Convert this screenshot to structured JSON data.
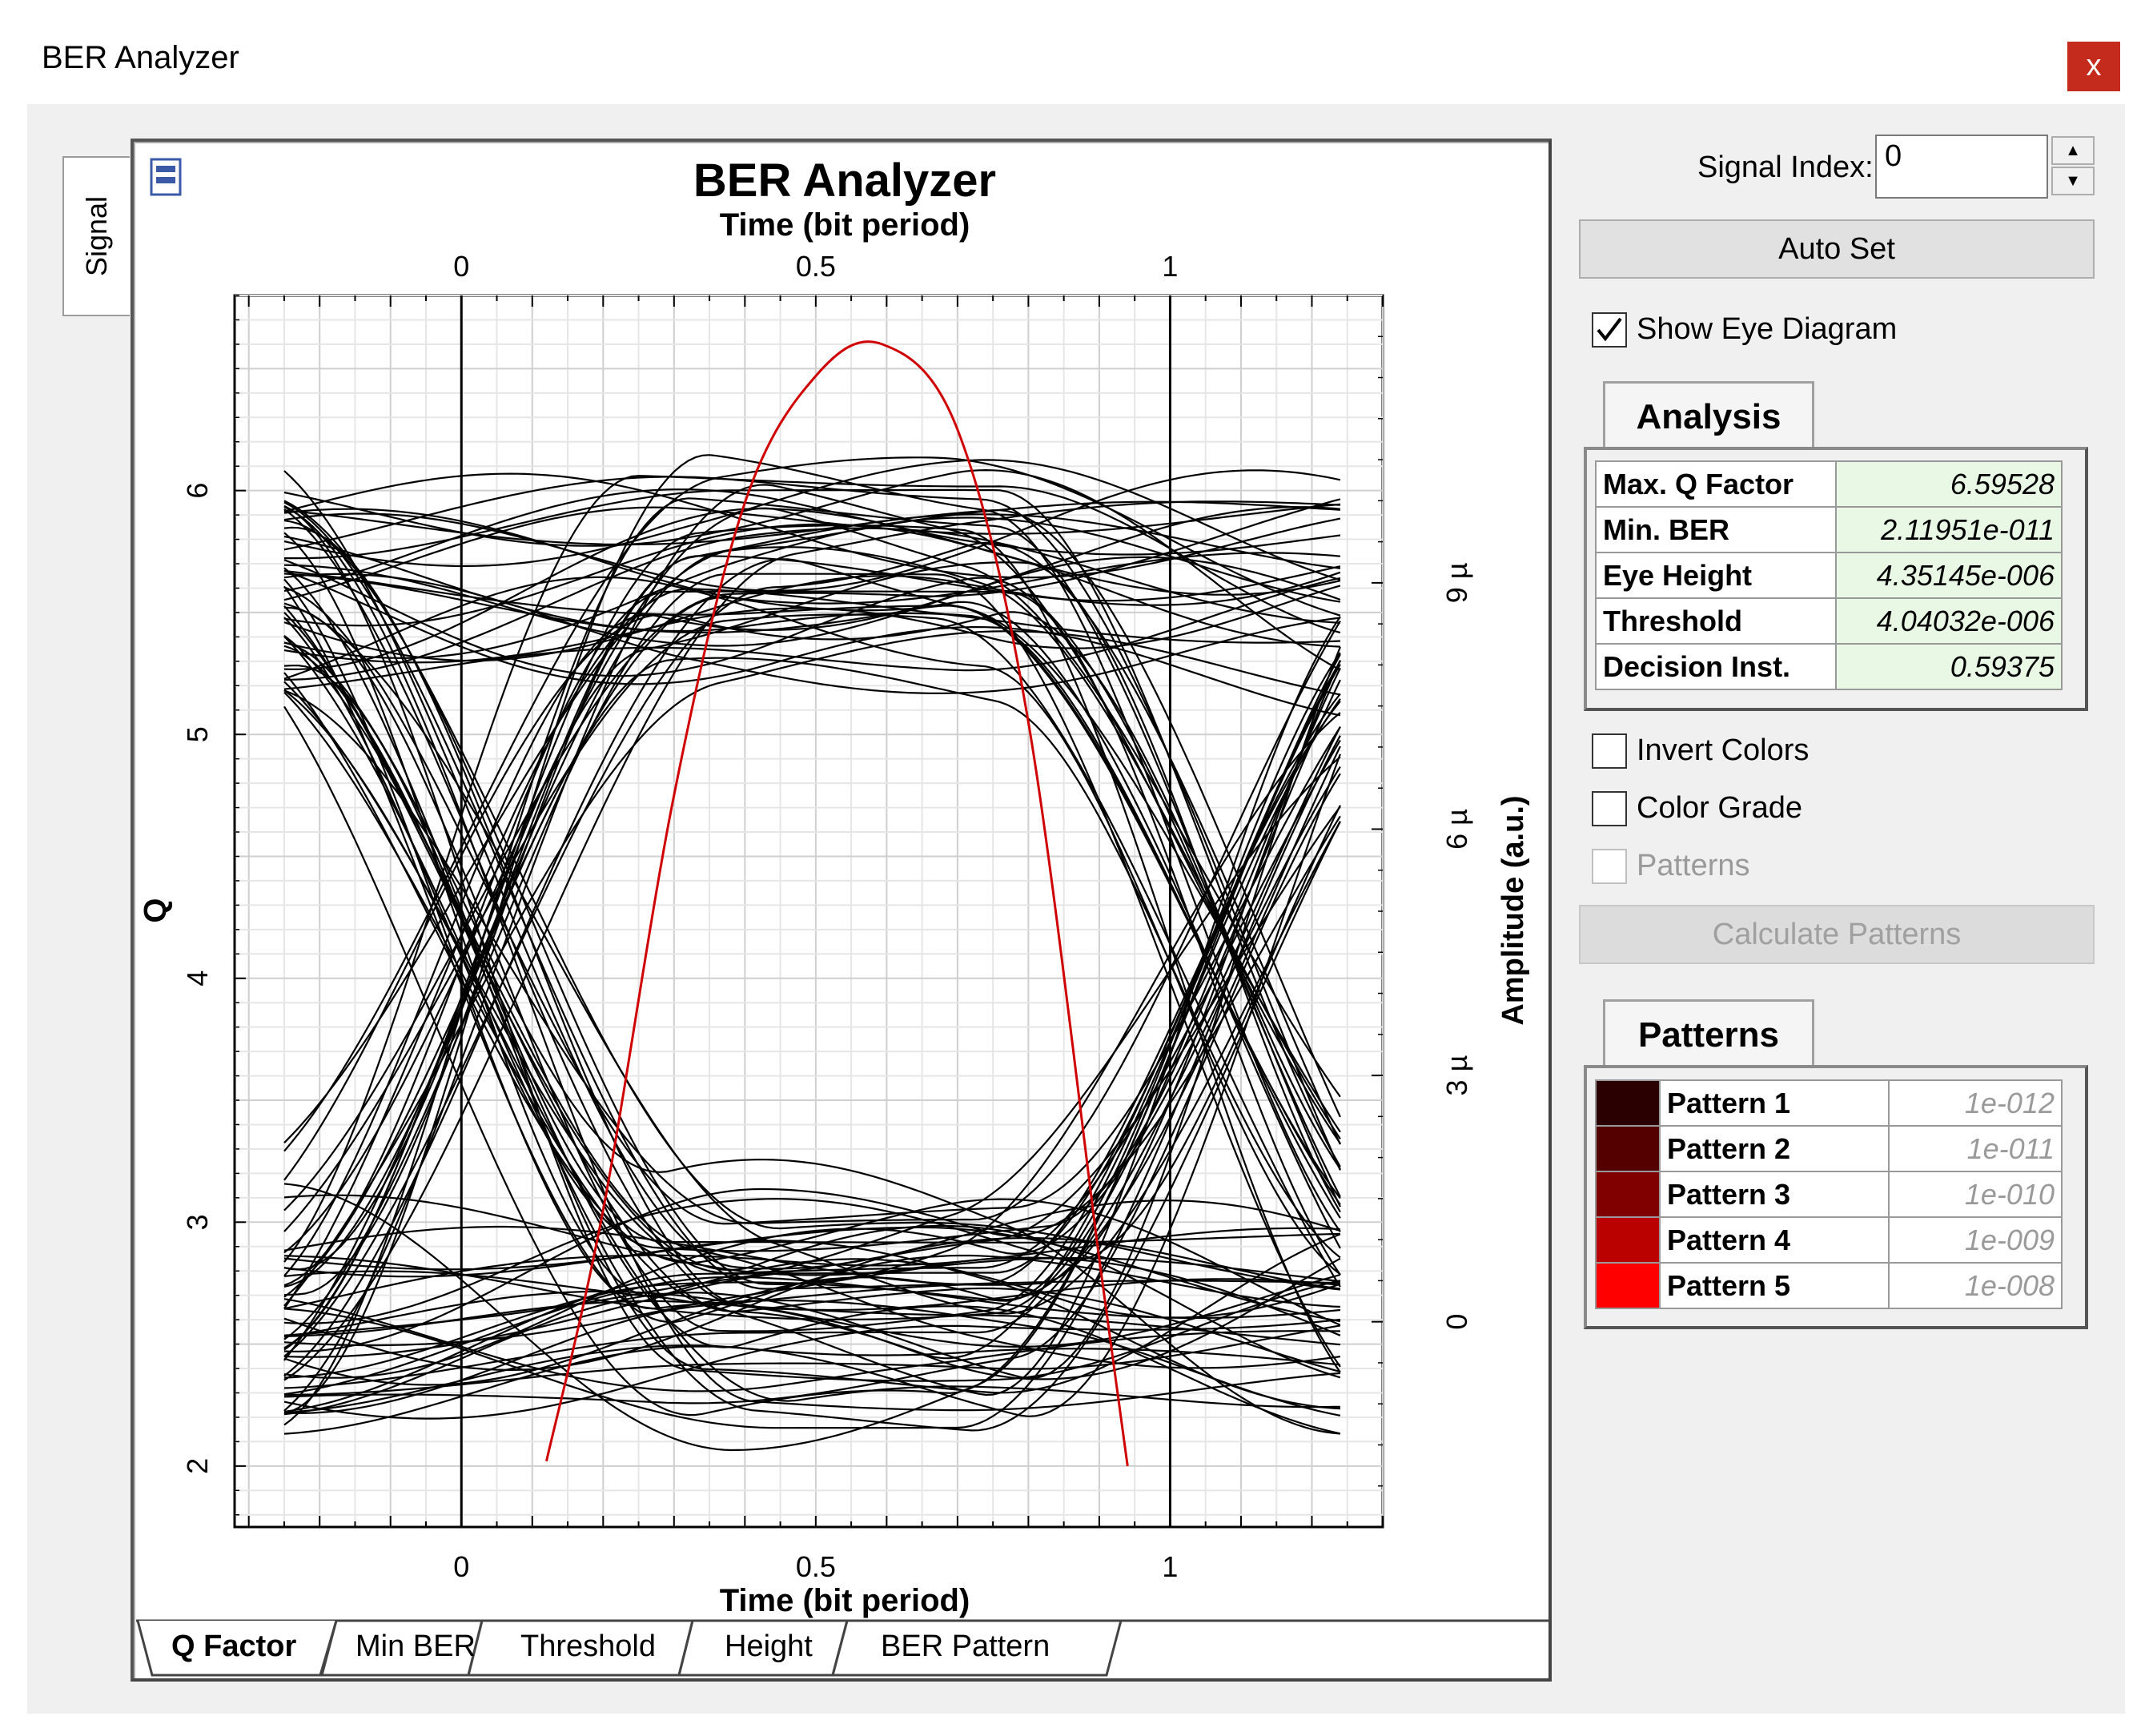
{
  "window": {
    "title": "BER Analyzer",
    "close_label": "x"
  },
  "side_tab": {
    "label": "Signal"
  },
  "plot": {
    "title": "BER Analyzer",
    "xlabel_top": "Time (bit period)",
    "xlabel_bottom": "Time (bit period)",
    "ylabel_left": "Q",
    "ylabel_right": "Amplitude (a.u.)",
    "x_ticks": [
      "0",
      "0.5",
      "1"
    ],
    "y_left_ticks": [
      "2",
      "3",
      "4",
      "5",
      "6"
    ],
    "y_right_ticks": [
      "0",
      "3 µ",
      "6 µ",
      "9 µ"
    ]
  },
  "chart_data": {
    "type": "line",
    "title": "BER Analyzer",
    "xlabel": "Time (bit period)",
    "ylabel": "Q",
    "y2label": "Amplitude (a.u.)",
    "xlim": [
      -0.32,
      1.3
    ],
    "ylim": [
      1.75,
      6.8
    ],
    "y2lim": [
      -2.5,
      12.5
    ],
    "grid": true,
    "series": [
      {
        "color": "#d00000",
        "x": [
          0.12,
          0.2,
          0.3,
          0.4,
          0.5,
          0.59375,
          0.7,
          0.8,
          0.9,
          0.94
        ],
        "values": [
          2.02,
          3.05,
          4.75,
          5.95,
          6.47,
          6.6,
          6.25,
          5.05,
          2.85,
          2.0
        ]
      }
    ],
    "eye_trace_color": "#000000"
  },
  "bottom_tabs": [
    {
      "label": "Q Factor"
    },
    {
      "label": "Min BER"
    },
    {
      "label": "Threshold"
    },
    {
      "label": "Height"
    },
    {
      "label": "BER Pattern"
    }
  ],
  "controls": {
    "signal_index_label": "Signal Index:",
    "signal_index_value": "0",
    "auto_set_label": "Auto Set",
    "show_eye_label": "Show Eye Diagram",
    "invert_colors_label": "Invert Colors",
    "color_grade_label": "Color Grade",
    "patterns_label": "Patterns",
    "calc_patterns_label": "Calculate Patterns"
  },
  "analysis": {
    "tab_label": "Analysis",
    "rows": [
      {
        "label": "Max. Q Factor",
        "value": "6.59528"
      },
      {
        "label": "Min. BER",
        "value": "2.11951e-011"
      },
      {
        "label": "Eye Height",
        "value": "4.35145e-006"
      },
      {
        "label": "Threshold",
        "value": "4.04032e-006"
      },
      {
        "label": "Decision Inst.",
        "value": "0.59375"
      }
    ]
  },
  "patterns": {
    "tab_label": "Patterns",
    "rows": [
      {
        "label": "Pattern 1",
        "value": "1e-012",
        "color": "#2a0000"
      },
      {
        "label": "Pattern 2",
        "value": "1e-011",
        "color": "#550000"
      },
      {
        "label": "Pattern 3",
        "value": "1e-010",
        "color": "#800000"
      },
      {
        "label": "Pattern 4",
        "value": "1e-009",
        "color": "#bb0000"
      },
      {
        "label": "Pattern 5",
        "value": "1e-008",
        "color": "#ff0000"
      }
    ]
  }
}
